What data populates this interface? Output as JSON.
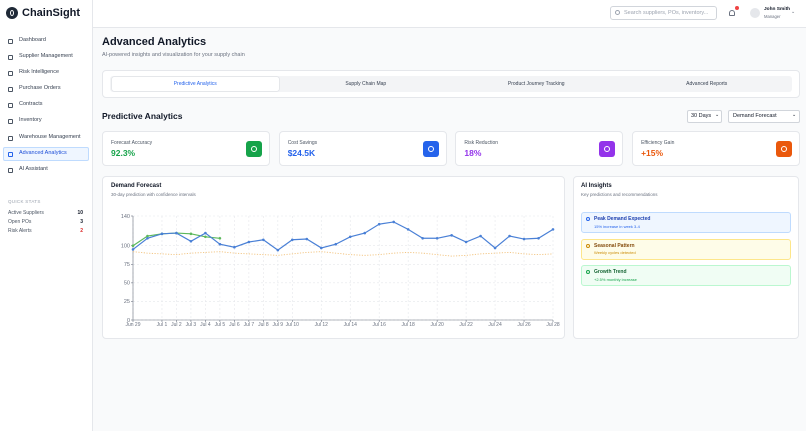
{
  "sidebar": {
    "brand": "ChainSight",
    "nav": [
      "Dashboard",
      "Supplier Management",
      "Risk Intelligence",
      "Purchase Orders",
      "Contracts",
      "Inventory",
      "Warehouse Management",
      "Advanced Analytics",
      "AI Assistant"
    ],
    "active": 7,
    "quick_stats": {
      "title": "QUICK STATS",
      "items": [
        {
          "label": "Active Suppliers",
          "value": 10
        },
        {
          "label": "Open POs",
          "value": 3
        },
        {
          "label": "Risk Alerts",
          "value": 2
        }
      ]
    }
  },
  "header": {
    "search_placeholder": "Search suppliers, POs, inventory...",
    "user": {
      "name": "John Smith",
      "role": "Manager"
    }
  },
  "page": {
    "title": "Advanced Analytics",
    "subtitle": "AI-powered insights and visualization for your supply chain",
    "tabs": [
      "Predictive Analytics",
      "Supply Chain Map",
      "Product Journey Tracking",
      "Advanced Reports"
    ],
    "active_tab": 0
  },
  "section": {
    "title": "Predictive Analytics",
    "filters": [
      "30 Days",
      "Demand Forecast"
    ]
  },
  "kpis": [
    {
      "label": "Forecast Accuracy",
      "value": "92.3%",
      "color": "#16a34a"
    },
    {
      "label": "Cost Savings",
      "value": "$24.5K",
      "color": "#2563eb"
    },
    {
      "label": "Risk Reduction",
      "value": "18%",
      "color": "#9333ea"
    },
    {
      "label": "Efficiency Gain",
      "value": "+15%",
      "color": "#ea580c"
    }
  ],
  "chart_data": {
    "type": "line",
    "title": "Demand Forecast",
    "subtitle": "30-day prediction with confidence intervals",
    "categories": [
      "Jun 29",
      null,
      "Jul 1",
      "Jul 2",
      "Jul 3",
      "Jul 4",
      "Jul 5",
      "Jul 6",
      "Jul 7",
      "Jul 8",
      "Jul 9",
      "Jul 10",
      null,
      "Jul 12",
      null,
      "Jul 14",
      null,
      "Jul 16",
      null,
      "Jul 18",
      null,
      "Jul 20",
      null,
      "Jul 22",
      null,
      "Jul 24",
      null,
      "Jul 26",
      null,
      "Jul 28"
    ],
    "series": [
      {
        "color": "#4a80d6",
        "style": "solid",
        "markers": true,
        "values": [
          95,
          110,
          116,
          117,
          106,
          117,
          102,
          98,
          105,
          108,
          94,
          108,
          109,
          97,
          102,
          112,
          117,
          129,
          132,
          122,
          110,
          110,
          114,
          105,
          113,
          97,
          113,
          109,
          110,
          122
        ]
      },
      {
        "color": "#5cb85c",
        "style": "solid",
        "markers": true,
        "values": [
          100,
          113,
          116,
          117,
          116,
          112,
          110,
          null,
          null,
          null,
          null,
          null,
          null,
          null,
          null,
          null,
          null,
          null,
          null,
          null,
          null,
          null,
          null,
          null,
          null,
          null,
          null,
          null,
          null,
          null
        ]
      },
      {
        "color": "#f2c27c",
        "style": "dotted",
        "markers": false,
        "values": [
          92,
          90,
          89,
          88,
          90,
          91,
          92,
          90,
          89,
          88,
          87,
          89,
          91,
          92,
          90,
          88,
          87,
          88,
          90,
          91,
          90,
          88,
          86,
          87,
          89,
          90,
          91,
          89,
          88,
          89
        ]
      }
    ],
    "ylim": [
      0,
      140
    ],
    "yticks": [
      0,
      25,
      50,
      75,
      100,
      140
    ],
    "grid": true
  },
  "insights": {
    "title": "AI Insights",
    "subtitle": "Key predictions and recommendations",
    "items": [
      {
        "title": "Peak Demand Expected",
        "detail": "15% increase in week 3-4",
        "bg": "#eff6ff",
        "border": "#bfdbfe",
        "accent": "#2563eb",
        "text": "#1e40af"
      },
      {
        "title": "Seasonal Pattern",
        "detail": "Weekly cycles detected",
        "bg": "#fefce8",
        "border": "#fde68a",
        "accent": "#ca8a04",
        "text": "#854d0e"
      },
      {
        "title": "Growth Trend",
        "detail": "+2.5% monthly increase",
        "bg": "#f0fdf4",
        "border": "#bbf7d0",
        "accent": "#16a34a",
        "text": "#166534"
      }
    ]
  }
}
